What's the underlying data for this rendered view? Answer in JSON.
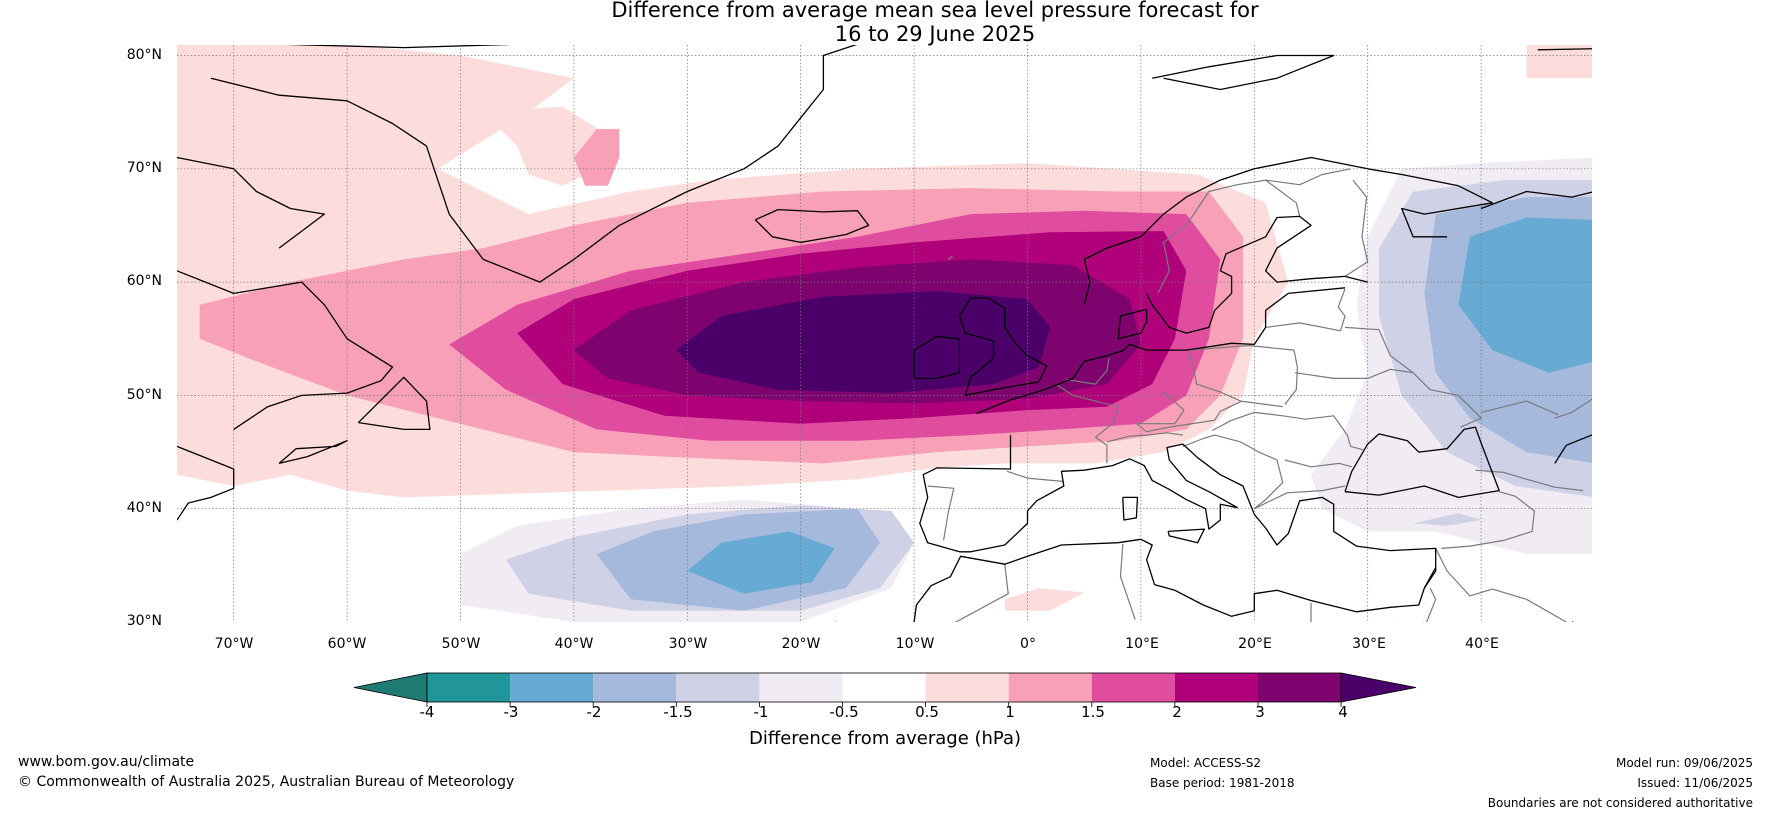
{
  "title": {
    "line1": "Difference from average mean sea level pressure forecast for",
    "line2": "16 to 29 June 2025"
  },
  "map": {
    "lat_labels": [
      "80°N",
      "70°N",
      "60°N",
      "50°N",
      "40°N",
      "30°N"
    ],
    "lon_labels": [
      "70°W",
      "60°W",
      "50°W",
      "40°W",
      "30°W",
      "20°W",
      "10°W",
      "0°",
      "10°E",
      "20°E",
      "30°E",
      "40°E"
    ],
    "lon_range": [
      -75,
      50
    ],
    "lat_range": [
      30,
      81
    ],
    "colors": {
      "neg4": "#1f7a72",
      "neg3": "#20969a",
      "neg2": "#67aad3",
      "neg15": "#a5b9dc",
      "neg1": "#cfd1e6",
      "neg05": "#f1ebf4",
      "zero": "#ffffff",
      "pos05": "#fddcdc",
      "pos1": "#f7a0b8",
      "pos15": "#e04d9f",
      "pos2": "#b0007a",
      "pos3": "#7e036f",
      "pos4": "#4a0068",
      "coast": "#000000",
      "border": "#7a7a7a",
      "grid": "#777777"
    }
  },
  "colorbar": {
    "ticks": [
      "-4",
      "-3",
      "-2",
      "-1.5",
      "-1",
      "-0.5",
      "0.5",
      "1",
      "1.5",
      "2",
      "3",
      "4"
    ],
    "colors": [
      "#1f7a72",
      "#20969a",
      "#67aad3",
      "#a5b9dc",
      "#cfd1e6",
      "#f1ebf4",
      "#ffffff",
      "#fddcdc",
      "#f7a0b8",
      "#e04d9f",
      "#b0007a",
      "#7e036f",
      "#4a0068"
    ],
    "label": "Difference from average (hPa)"
  },
  "footer": {
    "url": "www.bom.gov.au/climate",
    "copyright": "© Commonwealth of Australia 2025, Australian Bureau of Meteorology",
    "model": "Model: ACCESS-S2",
    "base_period": "Base period: 1981-2018",
    "model_run": "Model run: 09/06/2025",
    "issued": "Issued: 11/06/2025",
    "disclaimer": "Boundaries are not considered authoritative"
  }
}
